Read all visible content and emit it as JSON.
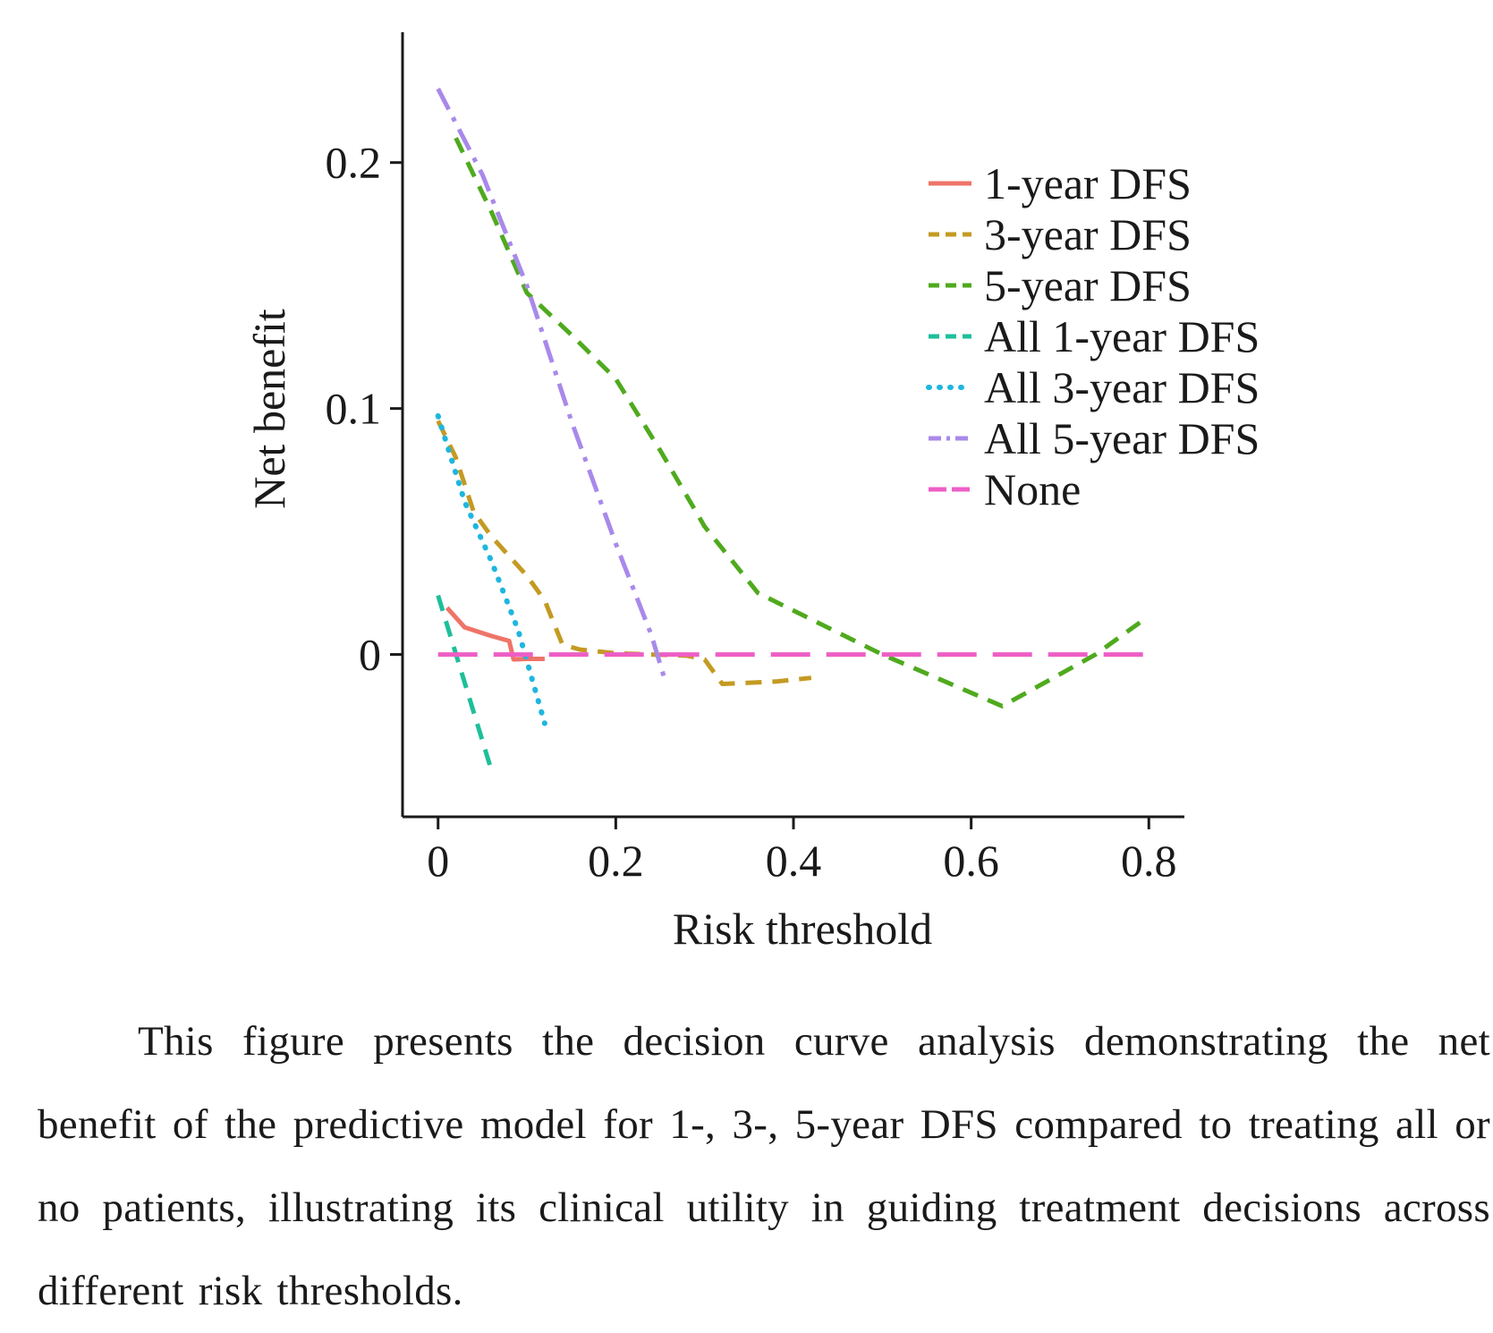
{
  "chart_data": {
    "type": "line",
    "title": "",
    "xlabel": "Risk threshold",
    "ylabel": "Net benefit",
    "xlim": [
      -0.04,
      0.84
    ],
    "ylim": [
      -0.066,
      0.253
    ],
    "x_ticks": [
      0,
      0.2,
      0.4,
      0.6,
      0.8
    ],
    "x_tick_labels": [
      "0",
      "0.2",
      "0.4",
      "0.6",
      "0.8"
    ],
    "y_ticks": [
      0,
      0.1,
      0.2
    ],
    "y_tick_labels": [
      "0",
      "0.1",
      "0.2"
    ],
    "grid": false,
    "legend_position": "top-right",
    "series": [
      {
        "name": "1-year DFS",
        "color": "#ef7468",
        "dash": "solid",
        "points": [
          [
            0.01,
            0.019
          ],
          [
            0.03,
            0.011
          ],
          [
            0.06,
            0.0075
          ],
          [
            0.08,
            0.0055
          ],
          [
            0.085,
            -0.002
          ],
          [
            0.1,
            -0.0018
          ],
          [
            0.12,
            -0.0018
          ]
        ]
      },
      {
        "name": "3-year DFS",
        "color": "#c49a22",
        "dash": "dashed",
        "points": [
          [
            0.0,
            0.095
          ],
          [
            0.02,
            0.08
          ],
          [
            0.04,
            0.058
          ],
          [
            0.06,
            0.048
          ],
          [
            0.08,
            0.04
          ],
          [
            0.1,
            0.032
          ],
          [
            0.12,
            0.022
          ],
          [
            0.14,
            0.004
          ],
          [
            0.16,
            0.002
          ],
          [
            0.2,
            0.0005
          ],
          [
            0.24,
            0.0
          ],
          [
            0.28,
            -0.0005
          ],
          [
            0.3,
            -0.002
          ],
          [
            0.32,
            -0.012
          ],
          [
            0.38,
            -0.011
          ],
          [
            0.42,
            -0.0095
          ]
        ]
      },
      {
        "name": "5-year DFS",
        "color": "#4faa1e",
        "dash": "dashed",
        "points": [
          [
            0.02,
            0.21
          ],
          [
            0.06,
            0.18
          ],
          [
            0.1,
            0.147
          ],
          [
            0.15,
            0.13
          ],
          [
            0.2,
            0.112
          ],
          [
            0.25,
            0.083
          ],
          [
            0.3,
            0.052
          ],
          [
            0.36,
            0.025
          ],
          [
            0.5,
            0.0
          ],
          [
            0.635,
            -0.021
          ],
          [
            0.74,
            0.0
          ],
          [
            0.79,
            0.013
          ]
        ]
      },
      {
        "name": "All 1-year DFS",
        "color": "#1ebf9a",
        "dash": "dashed",
        "points": [
          [
            0.0,
            0.024
          ],
          [
            0.06,
            -0.047
          ]
        ]
      },
      {
        "name": "All 3-year DFS",
        "color": "#1eb6df",
        "dash": "dotted",
        "points": [
          [
            0.0,
            0.097
          ],
          [
            0.03,
            0.062
          ],
          [
            0.06,
            0.038
          ],
          [
            0.09,
            0.01
          ],
          [
            0.12,
            -0.028
          ]
        ]
      },
      {
        "name": "All 5-year DFS",
        "color": "#a989ea",
        "dash": "dashdot",
        "points": [
          [
            0.0,
            0.23
          ],
          [
            0.05,
            0.195
          ],
          [
            0.1,
            0.15
          ],
          [
            0.15,
            0.095
          ],
          [
            0.2,
            0.045
          ],
          [
            0.24,
            0.008
          ],
          [
            0.255,
            -0.01
          ]
        ]
      },
      {
        "name": "None",
        "color": "#ee5ec6",
        "dash": "longdash",
        "points": [
          [
            0.0,
            0.0
          ],
          [
            0.8,
            0.0
          ]
        ]
      }
    ]
  },
  "caption": "This figure presents the decision curve analysis demonstrating the net benefit of the predictive model for 1-, 3-, 5-year DFS compared to treating all or no patients, illustrating its clinical utility in guiding treatment decisions across different risk thresholds."
}
